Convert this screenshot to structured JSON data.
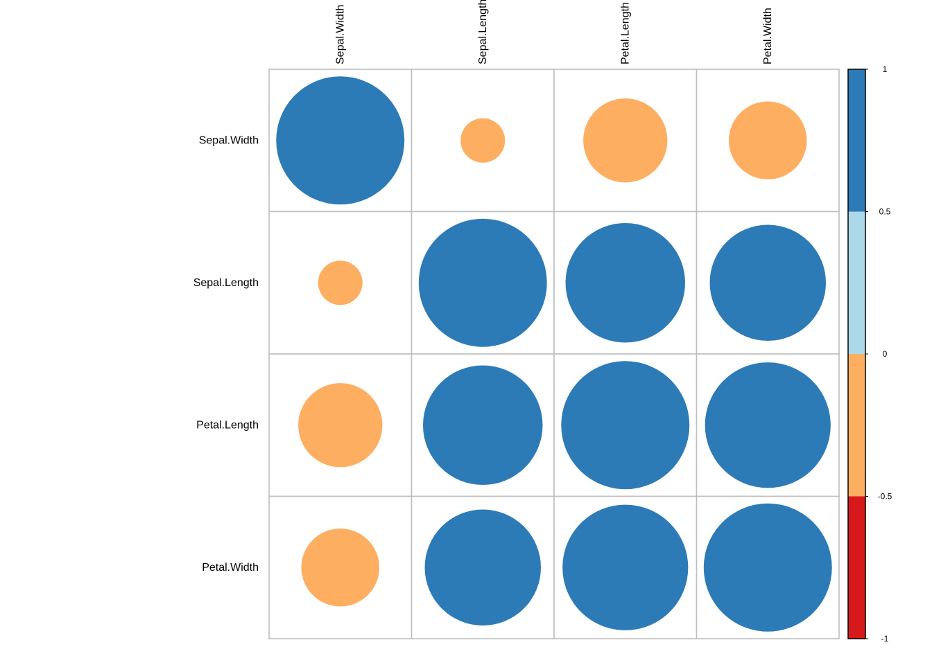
{
  "chart_data": {
    "type": "heatmap",
    "subtype": "correlation-circle-matrix",
    "title": "",
    "variables": [
      "Sepal.Width",
      "Sepal.Length",
      "Petal.Length",
      "Petal.Width"
    ],
    "row_labels": [
      "Sepal.Width",
      "Sepal.Length",
      "Petal.Length",
      "Petal.Width"
    ],
    "col_labels": [
      "Sepal.Width",
      "Sepal.Length",
      "Petal.Length",
      "Petal.Width"
    ],
    "matrix": [
      [
        1.0,
        -0.12,
        -0.43,
        -0.37
      ],
      [
        -0.12,
        1.0,
        0.87,
        0.82
      ],
      [
        -0.43,
        0.87,
        1.0,
        0.96
      ],
      [
        -0.37,
        0.82,
        0.96,
        1.0
      ]
    ],
    "color_scale": {
      "range": [
        -1,
        1
      ],
      "breaks": [
        -1,
        -0.5,
        0,
        0.5,
        1
      ],
      "tick_labels": [
        "1",
        "0.5",
        "0",
        "-0.5",
        "-1"
      ],
      "colors": [
        "#D7191C",
        "#FDAE61",
        "#ABD9E9",
        "#2C7BB6"
      ]
    },
    "grid_color": "#BEBEBE"
  }
}
